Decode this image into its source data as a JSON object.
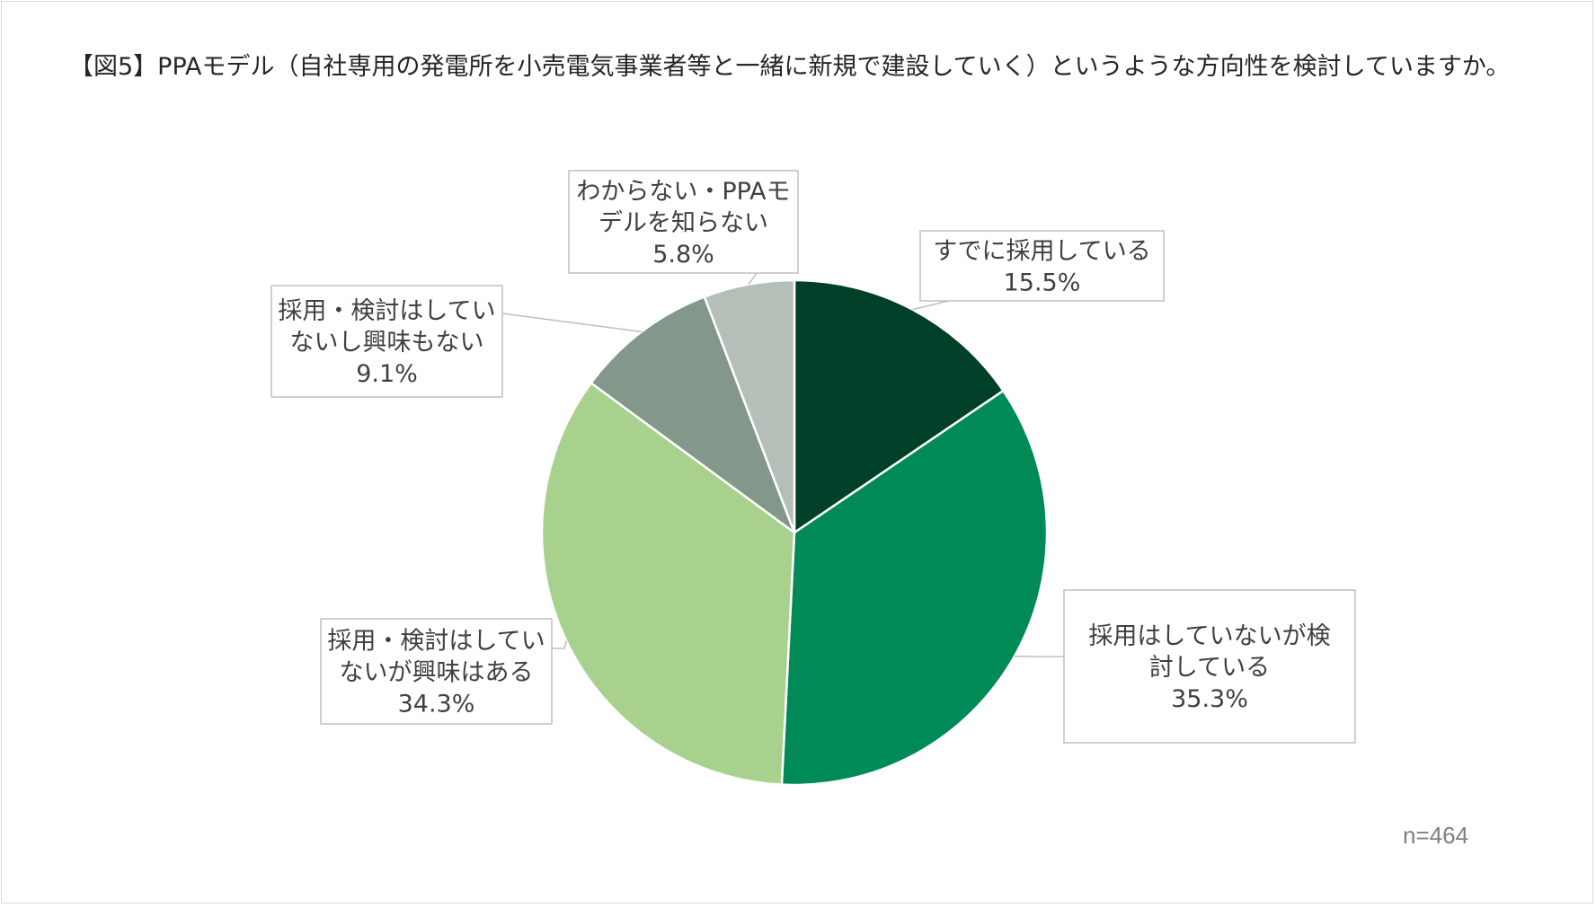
{
  "title": "【図5】PPAモデル（自社専用の発電所を小売電気事業者等と一緒に新規で建設していく）というような方向性を検討していますか。",
  "note": "n=464",
  "chart_data": {
    "type": "pie",
    "title": "【図5】PPAモデル（自社専用の発電所を小売電気事業者等と一緒に新規で建設していく）というような方向性を検討していますか。",
    "slices": [
      {
        "label_lines": [
          "すでに採用している"
        ],
        "value": 15.5,
        "value_label": "15.5%",
        "color": "#003f28"
      },
      {
        "label_lines": [
          "採用はしていないが検",
          "討している"
        ],
        "value": 35.3,
        "value_label": "35.3%",
        "color": "#008a58"
      },
      {
        "label_lines": [
          "採用・検討はしてい",
          "ないが興味はある"
        ],
        "value": 34.3,
        "value_label": "34.3%",
        "color": "#a9d18e"
      },
      {
        "label_lines": [
          "採用・検討はしてい",
          "ないし興味もない"
        ],
        "value": 9.1,
        "value_label": "9.1%",
        "color": "#84978b"
      },
      {
        "label_lines": [
          "わからない・PPAモ",
          "デルを知らない"
        ],
        "value": 5.8,
        "value_label": "5.8%",
        "color": "#b5bfb8"
      }
    ]
  }
}
